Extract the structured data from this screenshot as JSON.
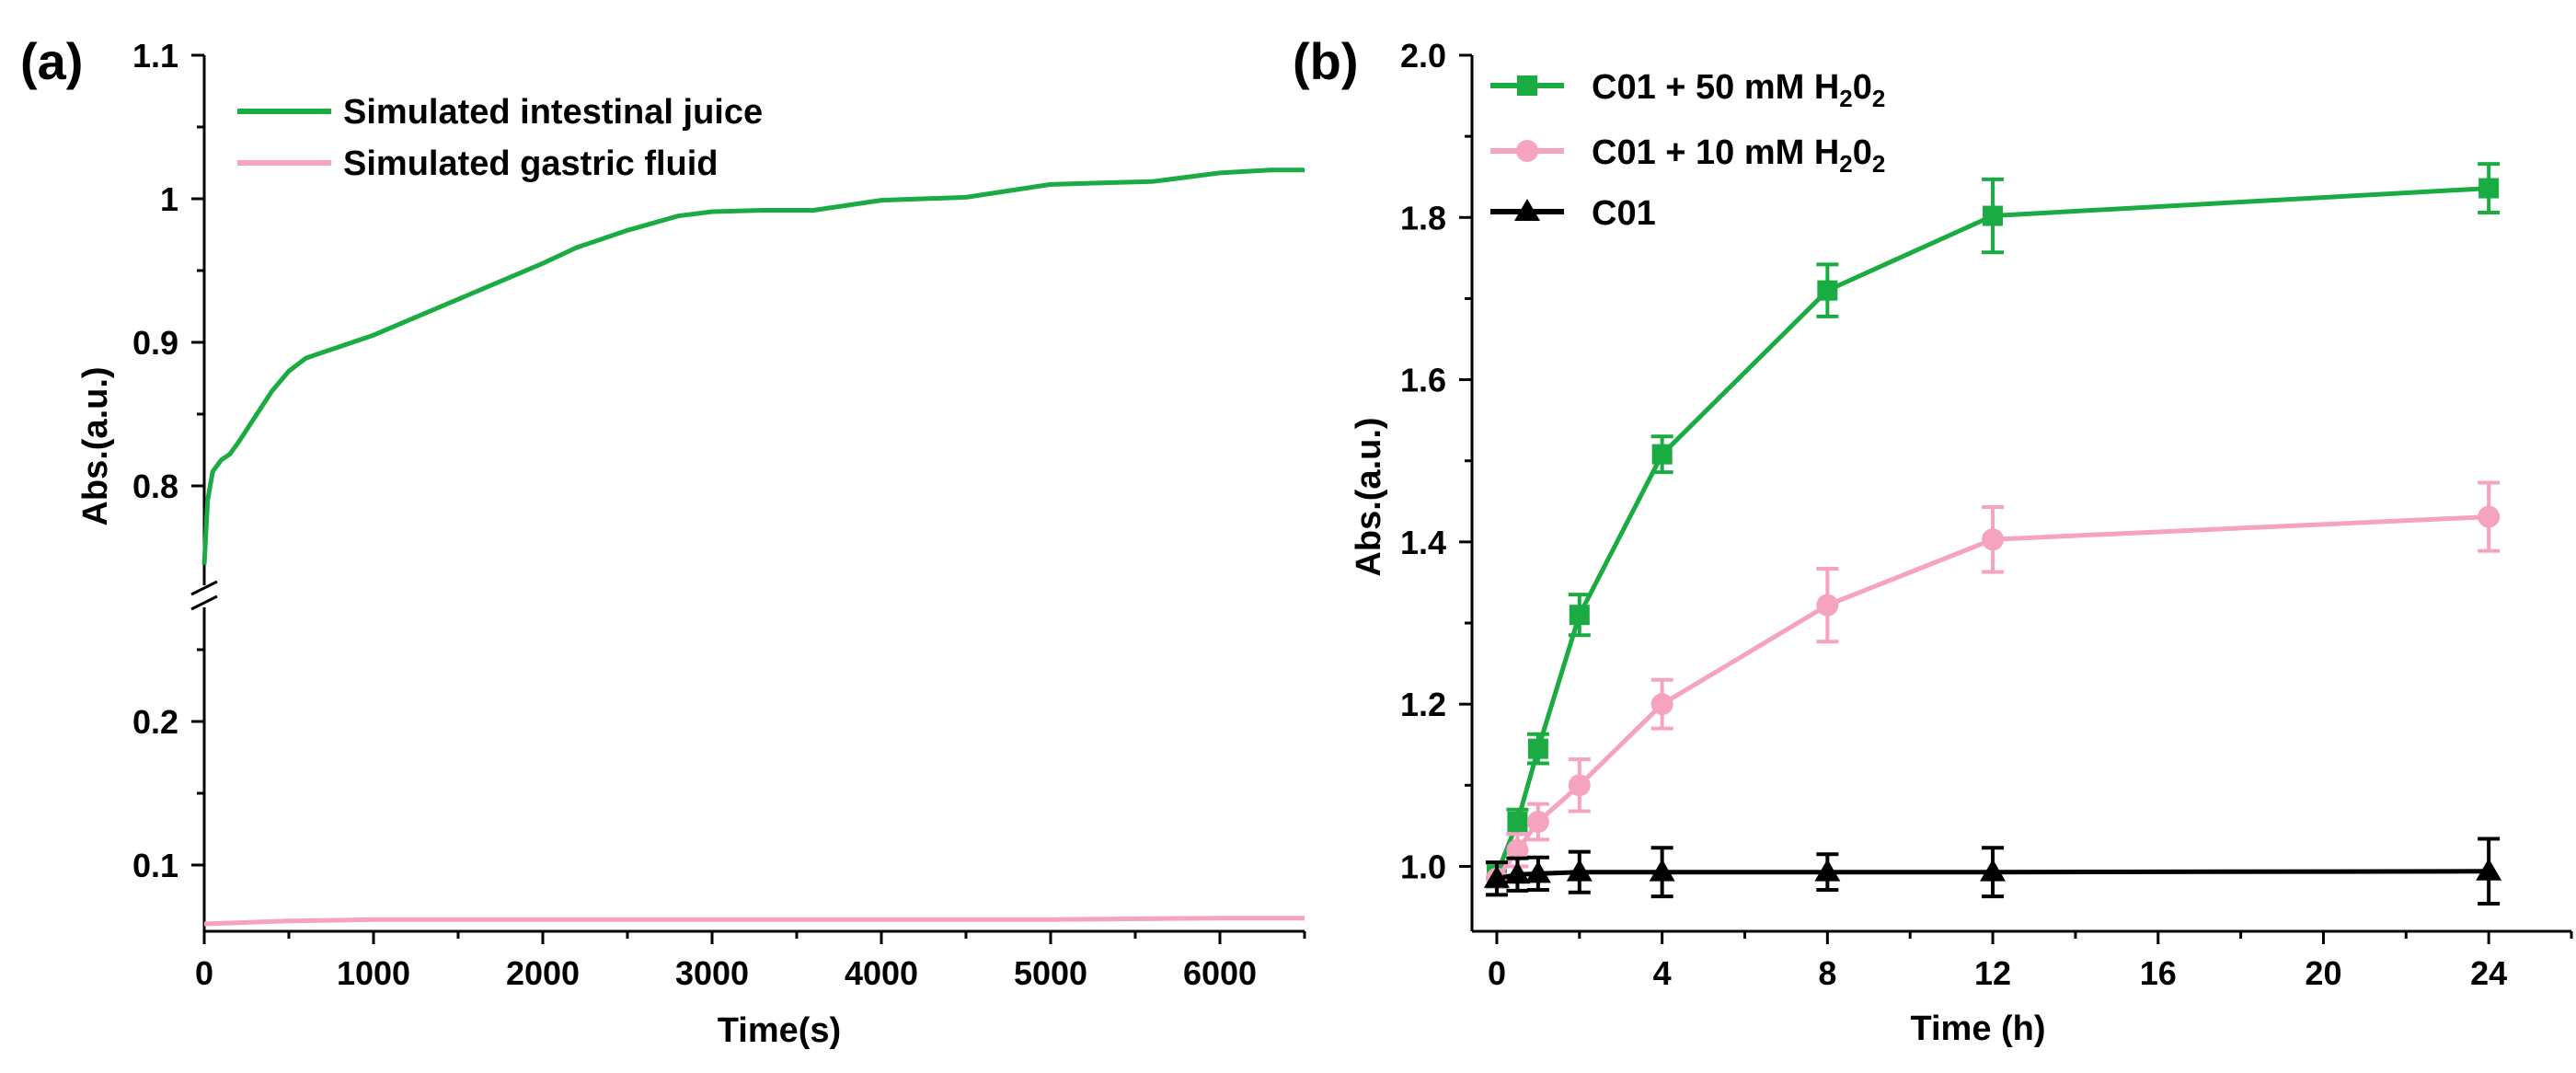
{
  "colors": {
    "green": "#1aab42",
    "pink": "#f5a3c1",
    "black": "#000000"
  },
  "chart_data": [
    {
      "panel": "(a)",
      "type": "line",
      "xlabel": "Time(s)",
      "ylabel": "Abs.(a.u.)",
      "xlim": [
        0,
        6500
      ],
      "x_ticks": [
        0,
        1000,
        2000,
        3000,
        4000,
        5000,
        6000
      ],
      "y_axis_break": true,
      "ylim_upper": [
        0.75,
        1.1
      ],
      "ylim_lower": [
        0.05,
        0.25
      ],
      "y_ticks_upper": [
        0.8,
        0.9,
        1.0,
        1.1
      ],
      "y_ticks_lower": [
        0.1,
        0.2
      ],
      "legend_position": "top-left",
      "series": [
        {
          "name": "Simulated intestinal juice",
          "color": "#1aab42",
          "x": [
            0,
            20,
            50,
            100,
            150,
            200,
            300,
            400,
            500,
            600,
            700,
            800,
            1000,
            1200,
            1500,
            1800,
            2000,
            2200,
            2500,
            2800,
            3000,
            3300,
            3600,
            4000,
            4500,
            5000,
            5300,
            5600,
            6000,
            6300,
            6500
          ],
          "y": [
            0.745,
            0.79,
            0.81,
            0.818,
            0.822,
            0.83,
            0.848,
            0.866,
            0.88,
            0.889,
            0.893,
            0.897,
            0.905,
            0.915,
            0.93,
            0.945,
            0.955,
            0.966,
            0.978,
            0.988,
            0.991,
            0.992,
            0.992,
            0.999,
            1.001,
            1.01,
            1.011,
            1.012,
            1.018,
            1.02,
            1.02
          ]
        },
        {
          "name": "Simulated gastric fluid",
          "color": "#f5a3c1",
          "x": [
            0,
            500,
            1000,
            2000,
            3000,
            4000,
            5000,
            6000,
            6500
          ],
          "y": [
            0.059,
            0.061,
            0.062,
            0.062,
            0.062,
            0.062,
            0.062,
            0.063,
            0.063
          ]
        }
      ]
    },
    {
      "panel": "(b)",
      "type": "line",
      "xlabel": "Time (h)",
      "ylabel": "Abs.(a.u.)",
      "xlim": [
        -0.6,
        26
      ],
      "ylim": [
        0.92,
        2.0
      ],
      "x_ticks": [
        0,
        4,
        8,
        12,
        16,
        20,
        24
      ],
      "y_ticks": [
        1.0,
        1.2,
        1.4,
        1.6,
        1.8,
        2.0
      ],
      "legend_position": "top-left",
      "series": [
        {
          "name": "C01 + 50 mM H",
          "name_sub1": "2",
          "name_mid": "0",
          "name_sub2": "2",
          "color": "#1aab42",
          "marker": "square",
          "x": [
            0,
            0.5,
            1,
            2,
            4,
            8,
            12,
            24
          ],
          "y": [
            0.99,
            1.055,
            1.145,
            1.31,
            1.508,
            1.71,
            1.802,
            1.836
          ],
          "err": [
            0.015,
            0.015,
            0.018,
            0.025,
            0.022,
            0.032,
            0.045,
            0.03
          ]
        },
        {
          "name": "C01 + 10 mM H",
          "name_sub1": "2",
          "name_mid": "0",
          "name_sub2": "2",
          "color": "#f5a3c1",
          "marker": "circle",
          "x": [
            0,
            0.5,
            1,
            2,
            4,
            8,
            12,
            24
          ],
          "y": [
            0.985,
            1.02,
            1.055,
            1.1,
            1.2,
            1.322,
            1.403,
            1.431
          ],
          "err": [
            0.02,
            0.02,
            0.022,
            0.032,
            0.03,
            0.045,
            0.04,
            0.042
          ]
        },
        {
          "name": "C01",
          "color": "#000000",
          "marker": "triangle",
          "x": [
            0,
            0.5,
            1,
            2,
            4,
            8,
            12,
            24
          ],
          "y": [
            0.985,
            0.99,
            0.991,
            0.993,
            0.993,
            0.993,
            0.993,
            0.994
          ],
          "err": [
            0.02,
            0.02,
            0.02,
            0.025,
            0.03,
            0.022,
            0.03,
            0.04
          ]
        }
      ]
    }
  ]
}
